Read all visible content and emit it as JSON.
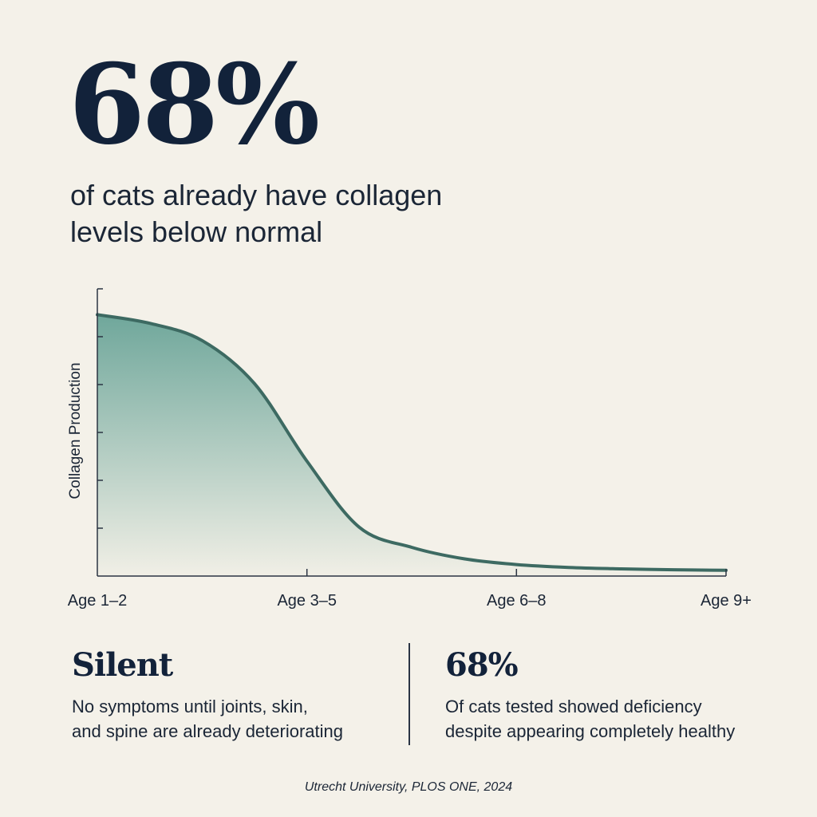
{
  "headline": {
    "value": "68%",
    "subtitle": "of cats already have collagen levels below normal"
  },
  "chart_data": {
    "type": "area",
    "ylabel": "Collagen Production",
    "xlabel": "",
    "categories": [
      "Age 1–2",
      "Age 3–5",
      "Age 6–8",
      "Age 9+"
    ],
    "x": [
      0,
      0.25,
      0.5,
      0.75,
      1,
      1.25,
      1.5,
      1.75,
      2,
      2.25,
      2.5,
      2.75,
      3
    ],
    "series": [
      {
        "values": [
          91,
          88,
          82,
          67,
          40,
          17,
          10,
          6,
          4,
          3,
          2.5,
          2.2,
          2
        ]
      }
    ],
    "ylim": [
      0,
      100
    ],
    "y_ticks": 6,
    "grid": false,
    "legend": "none",
    "colors": {
      "line": "#3d6a62",
      "fill_top": "#6fa79b",
      "fill_bottom": "#f1efe6",
      "axis": "#2b3442"
    }
  },
  "stats": [
    {
      "value": "Silent",
      "text_line1": "No symptoms until joints, skin,",
      "text_line2": "and spine are already deteriorating"
    },
    {
      "value": "68%",
      "text_line1": "Of cats tested showed deficiency",
      "text_line2": "despite appearing completely healthy"
    }
  ],
  "source": "Utrecht University, PLOS ONE, 2024",
  "colors": {
    "background": "#f4f1e9",
    "text": "#12223a"
  }
}
